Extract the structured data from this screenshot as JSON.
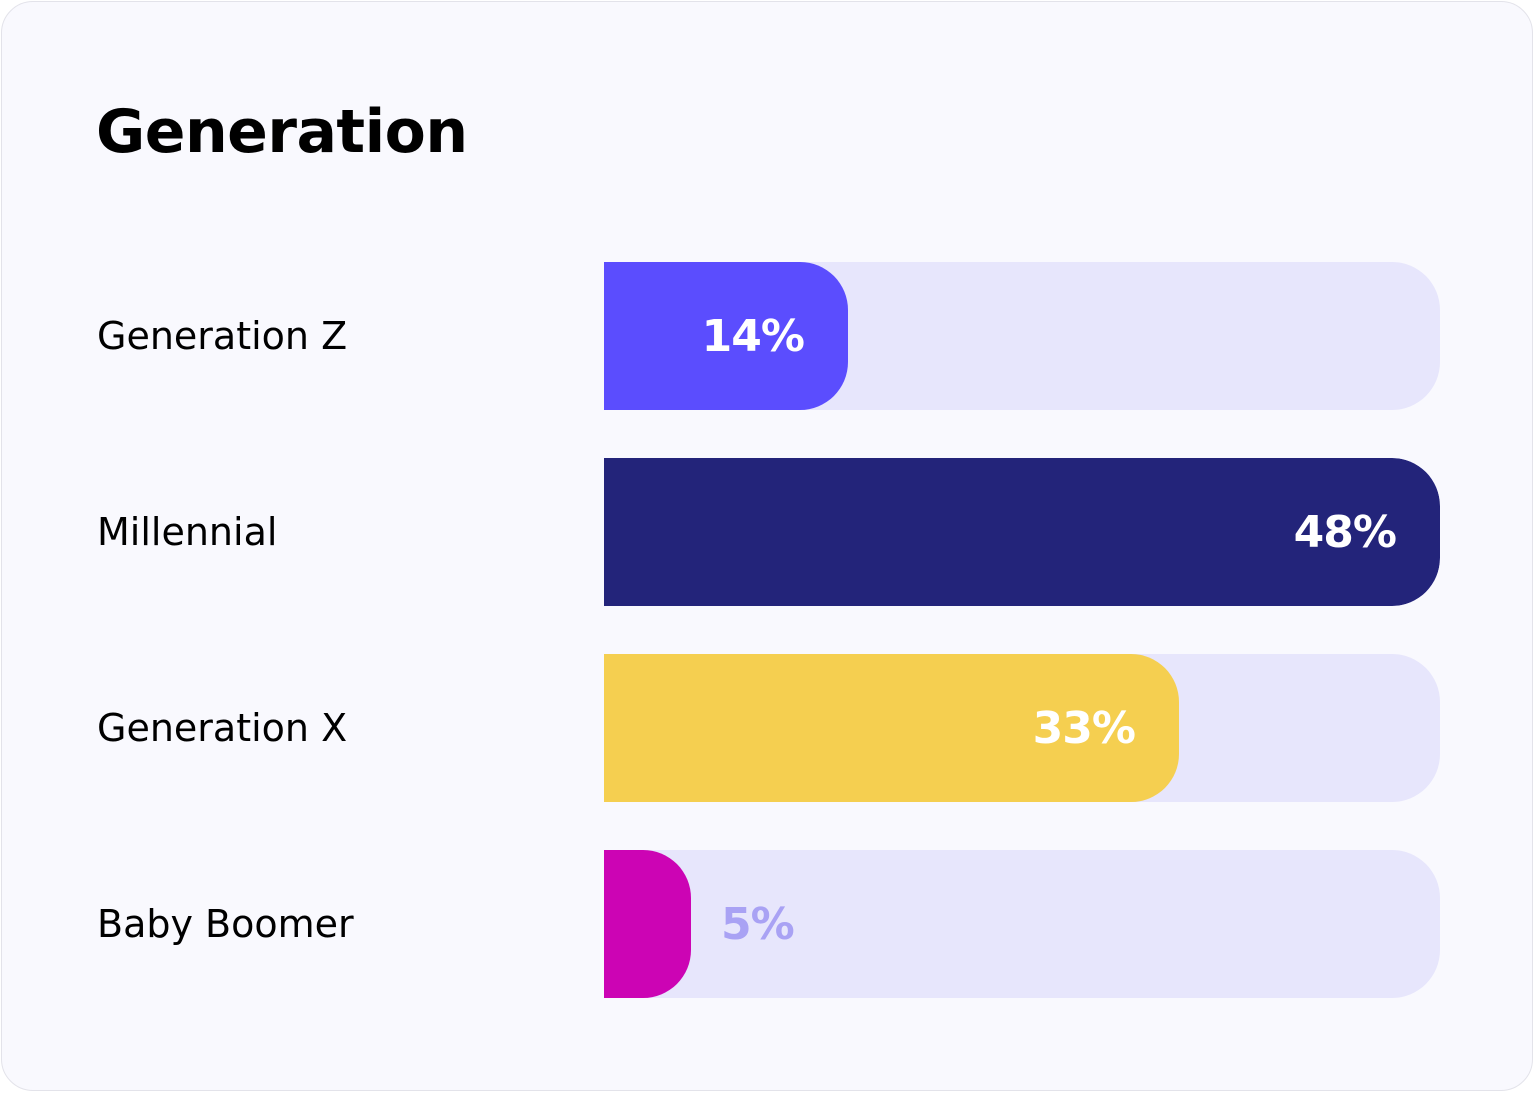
{
  "chart_data": {
    "type": "bar",
    "orientation": "horizontal",
    "title": "Generation",
    "categories": [
      "Generation Z",
      "Millennial",
      "Generation X",
      "Baby Boomer"
    ],
    "values": [
      14,
      48,
      33,
      5
    ],
    "value_labels": [
      "14%",
      "48%",
      "33%",
      "5%"
    ],
    "xlim": [
      0,
      48
    ],
    "colors": [
      "#5b4dfe",
      "#23247a",
      "#f5cf50",
      "#cc04b4"
    ],
    "track_color": "#e7e6fc",
    "outside_label_color": "#a9a2f4",
    "grid": false
  }
}
